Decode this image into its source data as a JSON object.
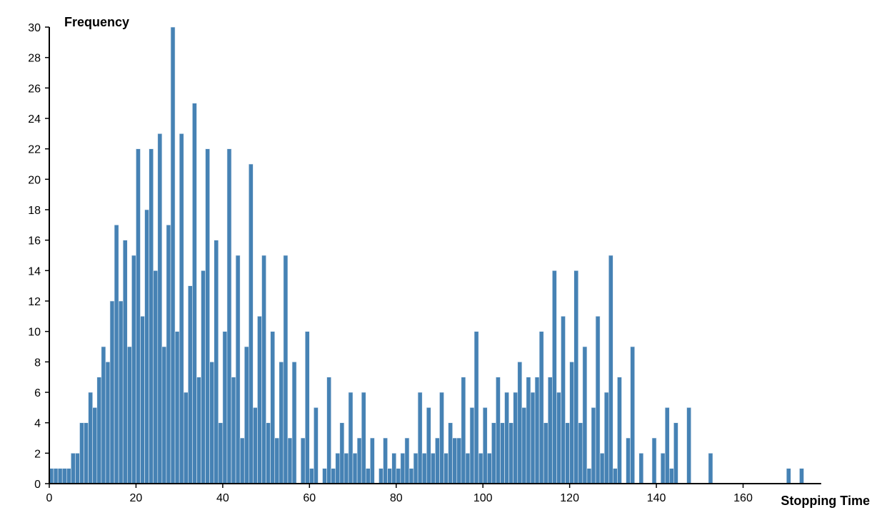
{
  "chart_data": {
    "type": "bar",
    "subtype": "histogram",
    "title": "",
    "xlabel": "Stopping Time",
    "ylabel": "Frequency",
    "bin_width": 1,
    "x_start": 0,
    "xlim": [
      0,
      178
    ],
    "ylim": [
      0,
      30
    ],
    "x_ticks": [
      0,
      20,
      40,
      60,
      80,
      100,
      120,
      140,
      160
    ],
    "y_ticks": [
      0,
      2,
      4,
      6,
      8,
      10,
      12,
      14,
      16,
      18,
      20,
      22,
      24,
      26,
      28,
      30
    ],
    "grid": false,
    "legend": "none",
    "bar_color": "#4682b4",
    "values": [
      1,
      1,
      1,
      1,
      1,
      2,
      2,
      4,
      4,
      6,
      5,
      7,
      9,
      8,
      12,
      17,
      12,
      16,
      9,
      15,
      22,
      11,
      18,
      22,
      14,
      23,
      9,
      17,
      30,
      10,
      23,
      6,
      13,
      25,
      7,
      14,
      22,
      8,
      16,
      4,
      10,
      22,
      7,
      15,
      3,
      9,
      21,
      5,
      11,
      15,
      4,
      10,
      3,
      8,
      15,
      3,
      8,
      0,
      3,
      10,
      1,
      5,
      0,
      1,
      7,
      1,
      2,
      4,
      2,
      6,
      2,
      3,
      6,
      1,
      3,
      0,
      1,
      3,
      1,
      2,
      1,
      2,
      3,
      1,
      2,
      6,
      2,
      5,
      2,
      3,
      6,
      2,
      4,
      3,
      3,
      7,
      2,
      5,
      10,
      2,
      5,
      2,
      4,
      7,
      4,
      6,
      4,
      6,
      8,
      5,
      7,
      6,
      7,
      10,
      4,
      7,
      14,
      6,
      11,
      4,
      8,
      14,
      4,
      9,
      1,
      5,
      11,
      2,
      6,
      15,
      1,
      7,
      0,
      3,
      9,
      0,
      2,
      0,
      0,
      3,
      0,
      2,
      5,
      1,
      4,
      0,
      0,
      5,
      0,
      0,
      0,
      0,
      2,
      0,
      0,
      0,
      0,
      0,
      0,
      0,
      0,
      0,
      0,
      0,
      0,
      0,
      0,
      0,
      0,
      0,
      1,
      0,
      0,
      1
    ]
  }
}
